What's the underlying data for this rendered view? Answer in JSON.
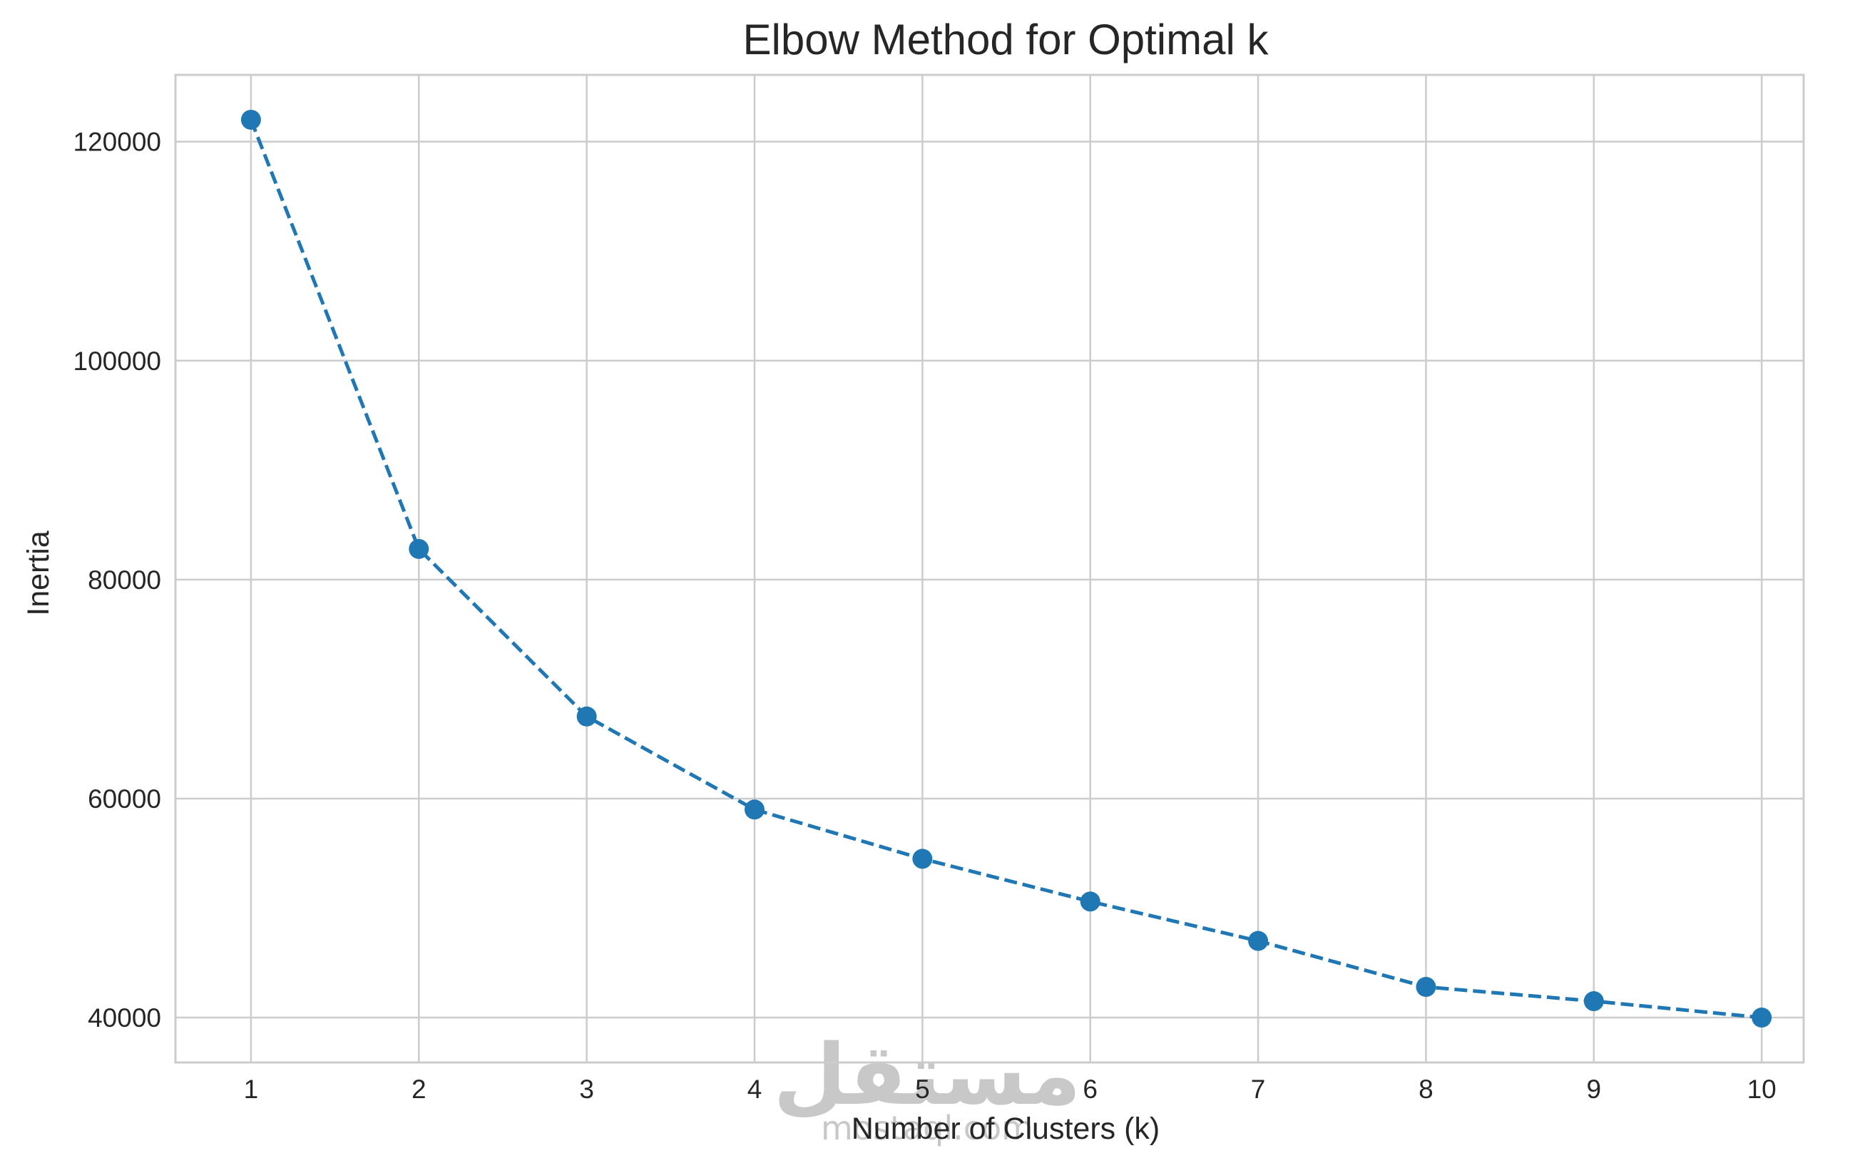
{
  "chart_data": {
    "type": "line",
    "title": "Elbow Method for Optimal k",
    "xlabel": "Number of Clusters (k)",
    "ylabel": "Inertia",
    "x": [
      1,
      2,
      3,
      4,
      5,
      6,
      7,
      8,
      9,
      10
    ],
    "series": [
      {
        "values": [
          122000,
          82800,
          67500,
          59000,
          54500,
          50600,
          47000,
          42800,
          41500,
          40000
        ],
        "color": "#1f77b4",
        "line_style": "dashed",
        "marker": "circle"
      }
    ],
    "xticks": [
      "1",
      "2",
      "3",
      "4",
      "5",
      "6",
      "7",
      "8",
      "9",
      "10"
    ],
    "yticks": [
      {
        "value": 40000,
        "label": "40000"
      },
      {
        "value": 60000,
        "label": "60000"
      },
      {
        "value": 80000,
        "label": "80000"
      },
      {
        "value": 100000,
        "label": "100000"
      },
      {
        "value": 120000,
        "label": "120000"
      }
    ],
    "xlim": [
      0.55,
      10.25
    ],
    "ylim": [
      35900,
      126100
    ],
    "grid": true,
    "colors": {
      "grid": "#cccccc",
      "spine": "#cccccc",
      "text": "#262626",
      "line": "#1f77b4"
    }
  },
  "watermark": {
    "arabic": "مستقل",
    "latin": "mostaql.com"
  }
}
